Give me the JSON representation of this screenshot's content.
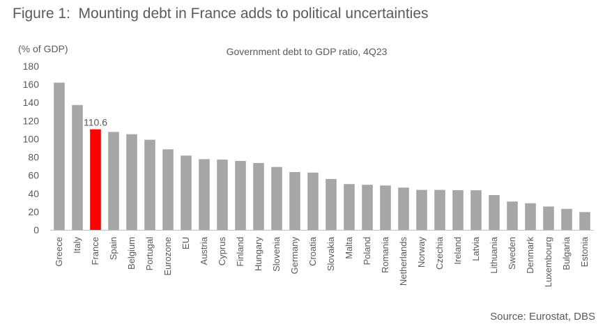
{
  "figure_title": "Figure 1:  Mounting debt in France adds to political uncertainties",
  "source": "Source: Eurostat, DBS",
  "chart_data": {
    "type": "bar",
    "title": "Government debt to GDP ratio, 4Q23",
    "ylabel": "(% of GDP)",
    "xlabel": "",
    "ylim": [
      0,
      180
    ],
    "yticks": [
      0,
      20,
      40,
      60,
      80,
      100,
      120,
      140,
      160,
      180
    ],
    "grid": false,
    "categories": [
      "Greece",
      "Italy",
      "France",
      "Spain",
      "Belgium",
      "Portugal",
      "Eurozone",
      "EU",
      "Austria",
      "Cyprus",
      "Finland",
      "Hungary",
      "Slovenia",
      "Germany",
      "Croatia",
      "Slovakia",
      "Malta",
      "Poland",
      "Romania",
      "Netherlands",
      "Norway",
      "Czechia",
      "Ireland",
      "Latvia",
      "Lithuania",
      "Sweden",
      "Denmark",
      "Luxembourg",
      "Bulgaria",
      "Estonia"
    ],
    "values": [
      161.9,
      137.3,
      110.6,
      107.7,
      105.2,
      99.1,
      88.6,
      81.7,
      77.8,
      77.3,
      75.8,
      73.5,
      69.2,
      63.6,
      63.0,
      56.0,
      50.4,
      49.6,
      48.8,
      46.5,
      44.0,
      44.0,
      43.7,
      43.6,
      38.3,
      31.2,
      29.3,
      25.7,
      23.1,
      19.6
    ],
    "data_labels": [
      {
        "category": "France",
        "text": "110.6"
      }
    ],
    "colors": {
      "default": "#a6a6a6",
      "highlight": "#ff0000",
      "axis": "#bfbfbf"
    },
    "highlight_category": "France"
  }
}
